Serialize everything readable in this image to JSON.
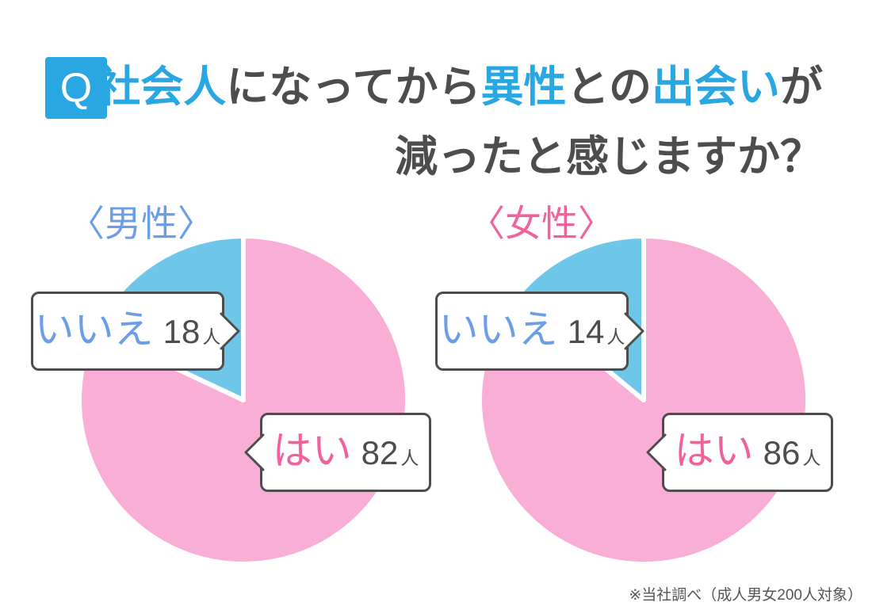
{
  "header": {
    "badge": "Q",
    "line1": [
      {
        "text": "社会人",
        "emphasis": true
      },
      {
        "text": "になってから",
        "emphasis": false
      },
      {
        "text": "異性",
        "emphasis": true
      },
      {
        "text": "との",
        "emphasis": false
      },
      {
        "text": "出会い",
        "emphasis": true
      },
      {
        "text": "が",
        "emphasis": false
      }
    ],
    "line2": "減ったと感じますか？"
  },
  "chart_data": [
    {
      "type": "pie",
      "group": "male",
      "title": "〈男性〉",
      "labels": [
        "はい",
        "いいえ"
      ],
      "values": [
        82,
        18
      ],
      "unit": "人",
      "colors": [
        "#F9AED5",
        "#6EC6E9"
      ],
      "label_text_colors": [
        "#F0619E",
        "#6B9EE6"
      ],
      "start_angle_deg": 0,
      "direction": "clockwise",
      "legend_position": "callout-bubbles"
    },
    {
      "type": "pie",
      "group": "female",
      "title": "〈女性〉",
      "labels": [
        "はい",
        "いいえ"
      ],
      "values": [
        86,
        14
      ],
      "unit": "人",
      "colors": [
        "#F9AED5",
        "#6EC6E9"
      ],
      "label_text_colors": [
        "#F0619E",
        "#6B9EE6"
      ],
      "start_angle_deg": 0,
      "direction": "clockwise",
      "legend_position": "callout-bubbles"
    }
  ],
  "footnote": "※当社調べ（成人男女200人対象）",
  "colors": {
    "accent_blue": "#29A7E2",
    "pie_pink": "#F9AED5",
    "pie_blue": "#6EC6E9",
    "yes_text_pink": "#F0619E",
    "no_text_blue": "#6B9EE6",
    "dark_gray": "#4D4D4D",
    "footnote_gray": "#555555",
    "background": "#FFFFFF"
  }
}
